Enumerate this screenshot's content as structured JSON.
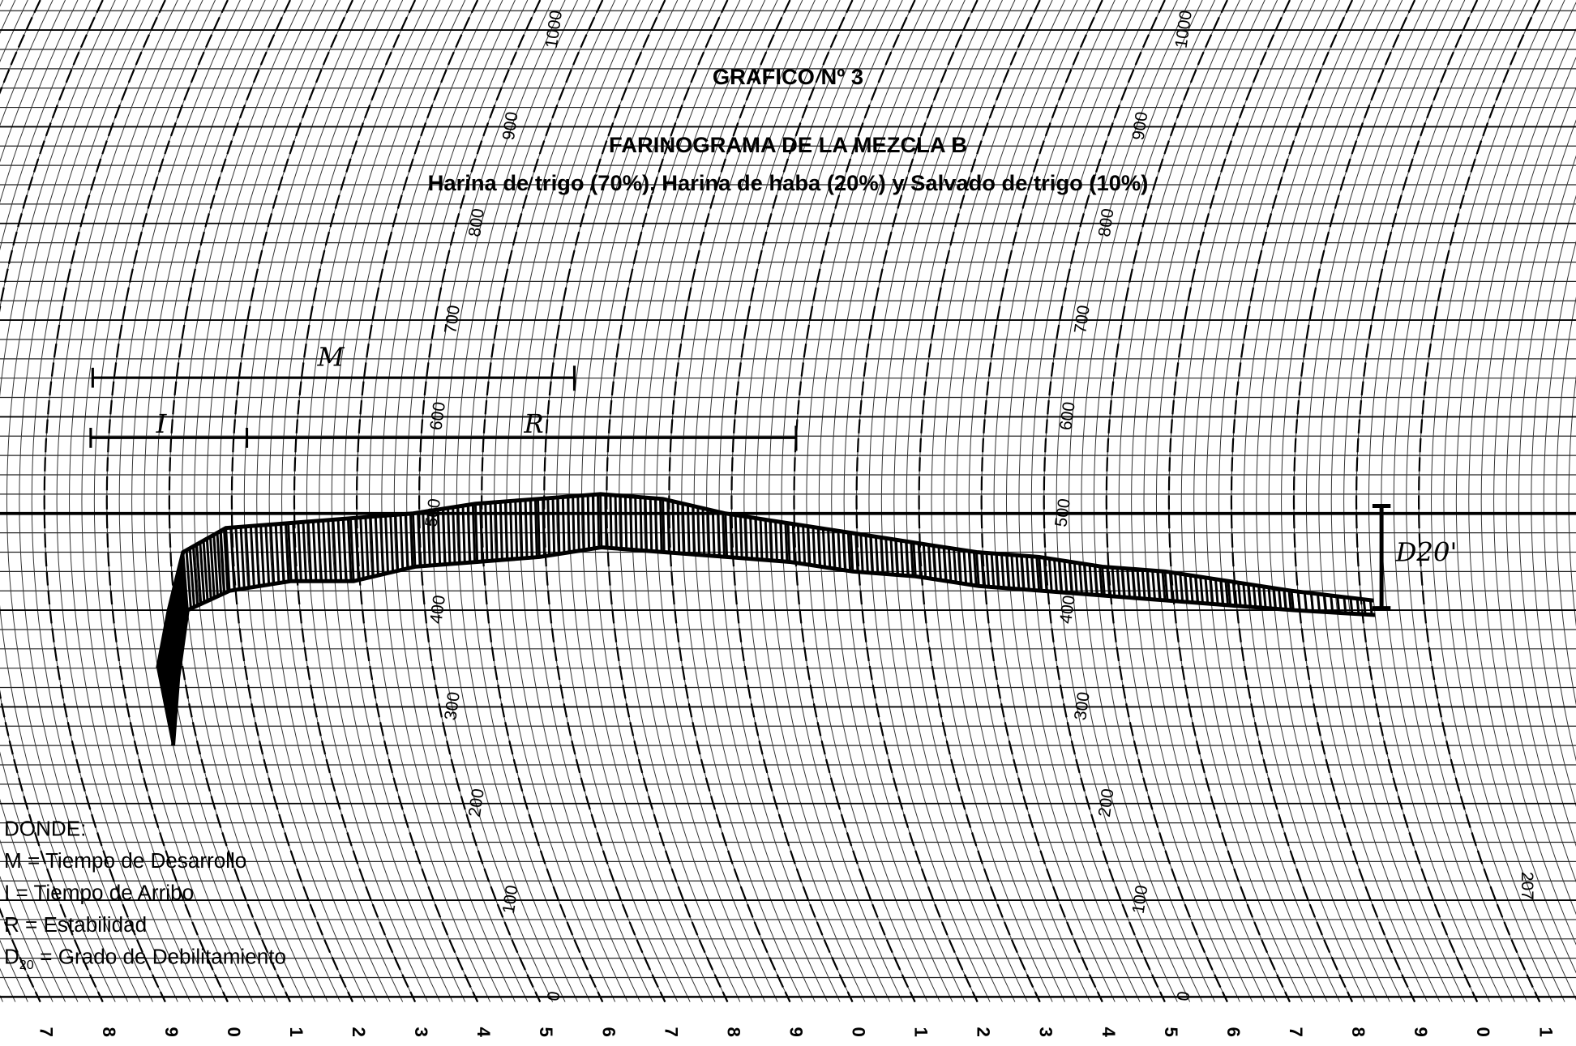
{
  "chart_data": {
    "type": "line",
    "title": "GRAFICO Nº 3",
    "subtitle": "FARINOGRAMA DE LA MEZCLA B",
    "subtitle2": "Harina de trigo (70%), Harina de haba (20%) y Salvado de trigo (10%)",
    "notes": {
      "heading": "DONDE:",
      "m": "M = Tiempo de Desarrollo",
      "i": "I = Tiempo de Arribo",
      "r": "R = Estabilidad",
      "d_symbol": "D",
      "d_sub": "20",
      "d": "= Grado de Debilitamiento"
    },
    "annotations": {
      "m": "M",
      "i": "I",
      "r": "R",
      "d": "D20'",
      "chart_no": "207"
    },
    "x": [
      3.6,
      3.9,
      4.2,
      4.9,
      5.9,
      6.9,
      7.9,
      8.9,
      9.9,
      10.9,
      11.9,
      12.9,
      13.9,
      14.9,
      15.9,
      16.9,
      17.9,
      18.9,
      19.9,
      20.9,
      21.9,
      23.2
    ],
    "series": [
      {
        "color": "#000000",
        "values": [
          340,
          400,
          460,
          485,
          490,
          495,
          500,
          510,
          515,
          520,
          515,
          500,
          490,
          480,
          470,
          460,
          455,
          445,
          440,
          430,
          420,
          410
        ]
      },
      {
        "color": "#000000",
        "values": [
          260,
          330,
          400,
          420,
          430,
          430,
          445,
          450,
          455,
          465,
          460,
          455,
          450,
          440,
          435,
          425,
          420,
          415,
          410,
          405,
          400,
          395
        ]
      }
    ],
    "xlim": [
      0,
      24
    ],
    "xticks": [
      {
        "value": 0,
        "label": "7"
      },
      {
        "value": 1,
        "label": "8"
      },
      {
        "value": 2,
        "label": "9"
      },
      {
        "value": 3,
        "label": "0"
      },
      {
        "value": 4,
        "label": "1"
      },
      {
        "value": 5,
        "label": "2"
      },
      {
        "value": 6,
        "label": "3"
      },
      {
        "value": 7,
        "label": "4"
      },
      {
        "value": 8,
        "label": "5"
      },
      {
        "value": 9,
        "label": "6"
      },
      {
        "value": 10,
        "label": "7"
      },
      {
        "value": 11,
        "label": "8"
      },
      {
        "value": 12,
        "label": "9"
      },
      {
        "value": 13,
        "label": "0"
      },
      {
        "value": 14,
        "label": "1"
      },
      {
        "value": 15,
        "label": "2"
      },
      {
        "value": 16,
        "label": "3"
      },
      {
        "value": 17,
        "label": "4"
      },
      {
        "value": 18,
        "label": "5"
      },
      {
        "value": 19,
        "label": "6"
      },
      {
        "value": 20,
        "label": "7"
      },
      {
        "value": 21,
        "label": "8"
      },
      {
        "value": 22,
        "label": "9"
      },
      {
        "value": 23,
        "label": "0"
      },
      {
        "value": 24,
        "label": "1"
      }
    ],
    "ylim": [
      0,
      1000
    ],
    "yticks": [
      0,
      100,
      200,
      300,
      400,
      500,
      600,
      700,
      800,
      900,
      1000
    ],
    "grid": true
  }
}
